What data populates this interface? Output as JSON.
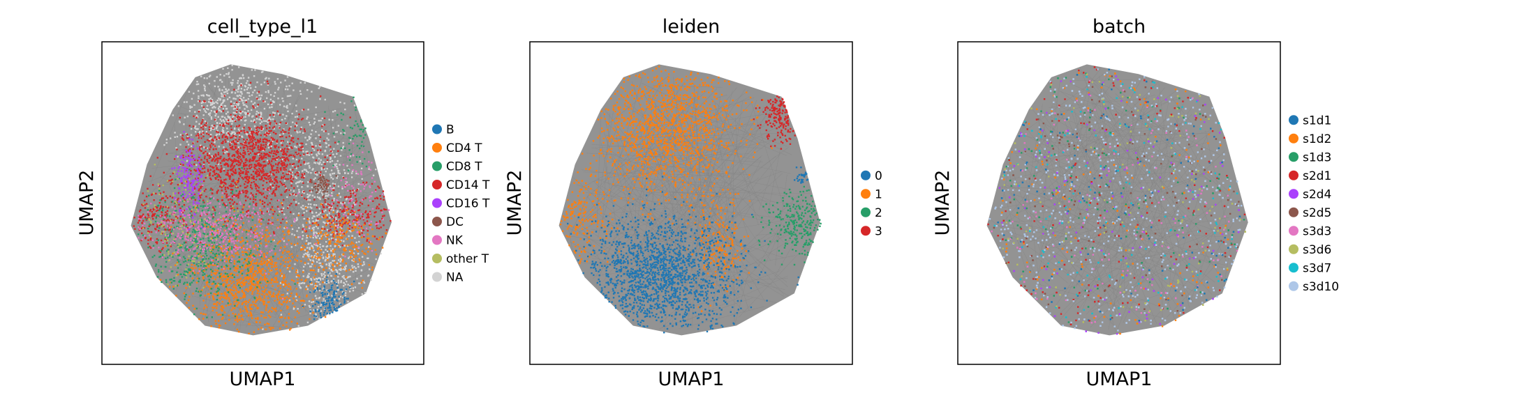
{
  "chart_data": [
    {
      "type": "scatter",
      "title": "cell_type_l1",
      "xlabel": "UMAP1",
      "ylabel": "UMAP2",
      "legend_placement": "right",
      "categories": [
        {
          "name": "B",
          "color": "#1f77b4"
        },
        {
          "name": "CD4 T",
          "color": "#ff7f0e"
        },
        {
          "name": "CD8 T",
          "color": "#279e68"
        },
        {
          "name": "CD14 T",
          "color": "#d62728"
        },
        {
          "name": "CD16 T",
          "color": "#aa40fc"
        },
        {
          "name": "DC",
          "color": "#8c564b"
        },
        {
          "name": "NK",
          "color": "#e377c2"
        },
        {
          "name": "other T",
          "color": "#b5bd61"
        },
        {
          "name": "NA",
          "color": "#d3d3d3"
        }
      ]
    },
    {
      "type": "scatter",
      "title": "leiden",
      "xlabel": "UMAP1",
      "ylabel": "UMAP2",
      "legend_placement": "right",
      "categories": [
        {
          "name": "0",
          "color": "#1f77b4"
        },
        {
          "name": "1",
          "color": "#ff7f0e"
        },
        {
          "name": "2",
          "color": "#279e68"
        },
        {
          "name": "3",
          "color": "#d62728"
        }
      ]
    },
    {
      "type": "scatter",
      "title": "batch",
      "xlabel": "UMAP1",
      "ylabel": "UMAP2",
      "legend_placement": "right",
      "categories": [
        {
          "name": "s1d1",
          "color": "#1f77b4"
        },
        {
          "name": "s1d2",
          "color": "#ff7f0e"
        },
        {
          "name": "s1d3",
          "color": "#279e68"
        },
        {
          "name": "s2d1",
          "color": "#d62728"
        },
        {
          "name": "s2d4",
          "color": "#aa40fc"
        },
        {
          "name": "s2d5",
          "color": "#8c564b"
        },
        {
          "name": "s3d3",
          "color": "#e377c2"
        },
        {
          "name": "s3d6",
          "color": "#b5bd61"
        },
        {
          "name": "s3d7",
          "color": "#17becf"
        },
        {
          "name": "s3d10",
          "color": "#aec7e8"
        }
      ]
    }
  ]
}
